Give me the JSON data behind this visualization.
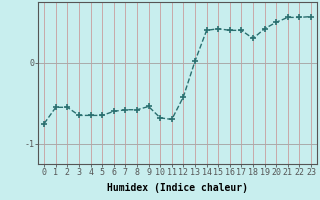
{
  "x": [
    0,
    1,
    2,
    3,
    4,
    5,
    6,
    7,
    8,
    9,
    10,
    11,
    12,
    13,
    14,
    15,
    16,
    17,
    18,
    19,
    20,
    21,
    22,
    23
  ],
  "y": [
    -0.75,
    -0.55,
    -0.55,
    -0.65,
    -0.65,
    -0.65,
    -0.6,
    -0.58,
    -0.58,
    -0.54,
    -0.68,
    -0.7,
    -0.42,
    0.02,
    0.4,
    0.42,
    0.4,
    0.4,
    0.3,
    0.42,
    0.5,
    0.56,
    0.56,
    0.57
  ],
  "line_color": "#2a7070",
  "marker": "+",
  "marker_size": 4,
  "marker_linewidth": 1.2,
  "line_width": 1.0,
  "bg_color": "#c8eeee",
  "hgrid_color": "#aaaaaa",
  "vgrid_color": "#c8a8a8",
  "xlabel": "Humidex (Indice chaleur)",
  "xlabel_fontsize": 7,
  "yticks": [
    -1,
    0
  ],
  "ylim": [
    -1.25,
    0.75
  ],
  "xlim": [
    -0.5,
    23.5
  ],
  "xtick_labels": [
    "0",
    "1",
    "2",
    "3",
    "4",
    "5",
    "6",
    "7",
    "8",
    "9",
    "10",
    "11",
    "12",
    "13",
    "14",
    "15",
    "16",
    "17",
    "18",
    "19",
    "20",
    "21",
    "22",
    "23"
  ],
  "tick_fontsize": 6,
  "spine_color": "#555555"
}
